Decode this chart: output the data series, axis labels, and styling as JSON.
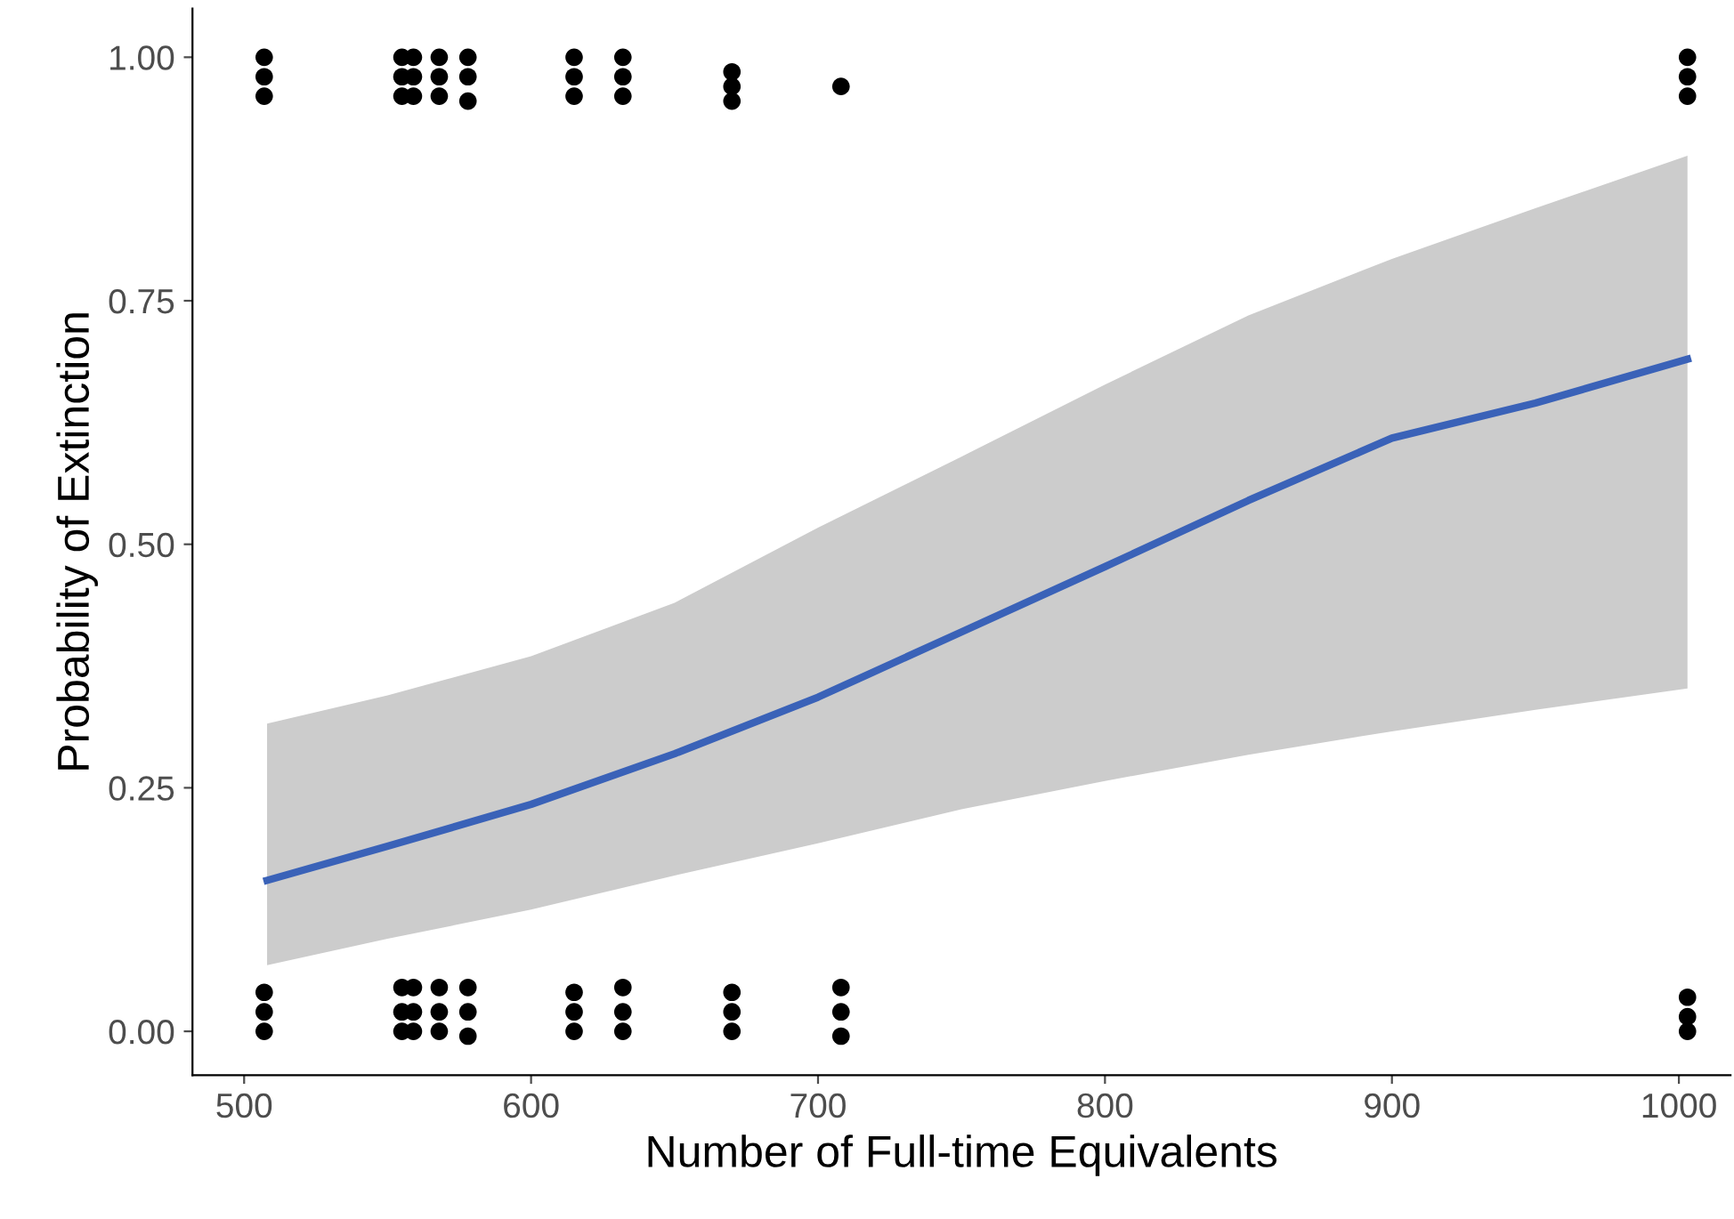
{
  "chart_data": {
    "type": "scatter",
    "xlabel": "Number of Full-time Equivalents",
    "ylabel": "Probability of Extinction",
    "xlim": [
      482,
      1018
    ],
    "ylim": [
      -0.045,
      1.05
    ],
    "xticks": [
      500,
      600,
      700,
      800,
      900,
      1000
    ],
    "yticks": [
      {
        "value": 0,
        "label": "0.00"
      },
      {
        "value": 0.25,
        "label": "0.25"
      },
      {
        "value": 0.5,
        "label": "0.50"
      },
      {
        "value": 0.75,
        "label": "0.75"
      },
      {
        "value": 1,
        "label": "1.00"
      }
    ],
    "grid": false,
    "legend": false,
    "series": [
      {
        "type": "line",
        "color": "#3a62b8",
        "x": [
          508,
          550,
          600,
          650,
          700,
          750,
          800,
          850,
          900,
          950,
          1003
        ],
        "values": [
          0.155,
          0.19,
          0.233,
          0.285,
          0.343,
          0.41,
          0.477,
          0.545,
          0.609,
          0.645,
          0.69
        ],
        "lower": [
          0.068,
          0.095,
          0.125,
          0.16,
          0.193,
          0.228,
          0.257,
          0.284,
          0.308,
          0.33,
          0.352
        ],
        "upper": [
          0.316,
          0.345,
          0.385,
          0.44,
          0.517,
          0.59,
          0.664,
          0.735,
          0.793,
          0.845,
          0.899
        ]
      },
      {
        "color": "#000000",
        "marker": "circle",
        "x": [
          507,
          507,
          507,
          507,
          507,
          507,
          555,
          555,
          555,
          559,
          559,
          559,
          555,
          555,
          555,
          559,
          559,
          559,
          568,
          568,
          568,
          578,
          578,
          578,
          568,
          568,
          568,
          578,
          578,
          578,
          615,
          615,
          615,
          615,
          615,
          615,
          632,
          632,
          632,
          632,
          632,
          632,
          670,
          670,
          670,
          670,
          670,
          670,
          708,
          708,
          708,
          708,
          1003,
          1003,
          1003,
          1003,
          1003,
          1003
        ],
        "values": [
          0.0,
          0.02,
          0.04,
          0.96,
          0.98,
          1.0,
          0.0,
          0.02,
          0.045,
          0.0,
          0.02,
          0.045,
          0.96,
          0.98,
          1.0,
          0.96,
          0.98,
          1.0,
          0.0,
          0.02,
          0.045,
          -0.005,
          0.02,
          0.045,
          0.96,
          0.98,
          1.0,
          0.955,
          0.98,
          1.0,
          0.0,
          0.02,
          0.04,
          0.96,
          0.98,
          1.0,
          0.0,
          0.02,
          0.045,
          0.96,
          0.98,
          1.0,
          0.0,
          0.02,
          0.04,
          0.955,
          0.97,
          0.985,
          -0.005,
          0.02,
          0.045,
          0.97,
          0.0,
          0.015,
          0.035,
          0.96,
          0.98,
          1.0
        ]
      }
    ]
  }
}
